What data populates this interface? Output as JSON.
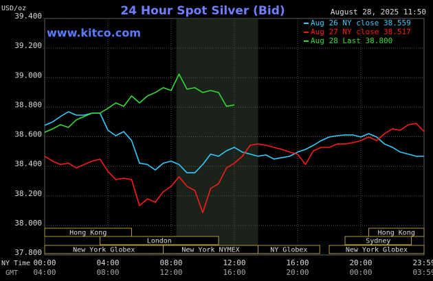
{
  "chart_data": {
    "type": "line",
    "title": "24 Hour Spot Silver (Bid)",
    "timestamp": "August 28, 2025 11:50",
    "watermark": "www.kitco.com",
    "y_label": "USD/oz",
    "x_label_rows": [
      "NY Time",
      "GMT"
    ],
    "x": [
      0,
      0.5,
      1,
      1.5,
      2,
      2.5,
      3,
      3.5,
      4,
      4.5,
      5,
      5.5,
      6,
      6.5,
      7,
      7.5,
      8,
      8.5,
      9,
      9.5,
      10,
      10.5,
      11,
      11.5,
      12,
      12.5,
      13,
      13.5,
      14,
      14.5,
      15,
      15.5,
      16,
      16.5,
      17,
      17.5,
      18,
      18.5,
      19,
      19.5,
      20,
      20.5,
      21,
      21.5,
      22,
      22.5,
      23,
      23.5,
      24
    ],
    "xlim": [
      0,
      24
    ],
    "xticks": [
      {
        "value": 0,
        "label": "00:00"
      },
      {
        "value": 4,
        "label": "04:00"
      },
      {
        "value": 8,
        "label": "08:00"
      },
      {
        "value": 12,
        "label": "12:00"
      },
      {
        "value": 16,
        "label": "16:00"
      },
      {
        "value": 20,
        "label": "20:00"
      },
      {
        "value": 24,
        "label": "23:59"
      }
    ],
    "gmt_tick_labels": [
      "04:00",
      "08:00",
      "12:00",
      "16:00",
      "20:00",
      "00:00",
      "03:59"
    ],
    "ylim": [
      37.8,
      39.4
    ],
    "yticks": [
      {
        "value": 37.8,
        "label": "37.800"
      },
      {
        "value": 38.0,
        "label": "38.000"
      },
      {
        "value": 38.2,
        "label": "38.200"
      },
      {
        "value": 38.4,
        "label": "38.400"
      },
      {
        "value": 38.6,
        "label": "38.600"
      },
      {
        "value": 38.8,
        "label": "38.800"
      },
      {
        "value": 39.0,
        "label": "39.000"
      },
      {
        "value": 39.2,
        "label": "39.200"
      },
      {
        "value": 39.4,
        "label": "39.400"
      }
    ],
    "grid": true,
    "shaded_hours": [
      8.33,
      13.5
    ],
    "series": [
      {
        "name": "Aug 26 NY close 38.559",
        "color": "#33ccff",
        "values": [
          38.677,
          38.7,
          38.737,
          38.769,
          38.746,
          38.746,
          38.76,
          38.76,
          38.644,
          38.607,
          38.635,
          38.574,
          38.421,
          38.412,
          38.375,
          38.421,
          38.435,
          38.412,
          38.356,
          38.356,
          38.412,
          38.482,
          38.468,
          38.505,
          38.528,
          38.496,
          38.482,
          38.468,
          38.477,
          38.449,
          38.458,
          38.468,
          38.496,
          38.514,
          38.542,
          38.574,
          38.598,
          38.607,
          38.612,
          38.612,
          38.598,
          38.621,
          38.598,
          38.551,
          38.528,
          38.496,
          38.482,
          38.468,
          38.468
        ]
      },
      {
        "name": "Aug 27 NY close 38.517",
        "color": "#ff1a1a",
        "values": [
          38.468,
          38.435,
          38.412,
          38.421,
          38.389,
          38.412,
          38.435,
          38.449,
          38.366,
          38.31,
          38.319,
          38.31,
          38.134,
          38.18,
          38.157,
          38.227,
          38.264,
          38.329,
          38.264,
          38.236,
          38.087,
          38.25,
          38.282,
          38.389,
          38.421,
          38.468,
          38.542,
          38.551,
          38.542,
          38.528,
          38.514,
          38.496,
          38.482,
          38.412,
          38.505,
          38.528,
          38.528,
          38.551,
          38.551,
          38.56,
          38.574,
          38.598,
          38.574,
          38.621,
          38.653,
          38.644,
          38.681,
          38.69,
          38.635
        ]
      },
      {
        "name": "Aug 28 Last 38.800",
        "color": "#33dd33",
        "values": [
          38.63,
          38.653,
          38.681,
          38.663,
          38.714,
          38.737,
          38.76,
          38.76,
          38.792,
          38.829,
          38.806,
          38.876,
          38.829,
          38.876,
          38.899,
          38.932,
          38.913,
          39.024,
          38.922,
          38.932,
          38.899,
          38.913,
          38.899,
          38.806,
          38.815,
          null,
          null,
          null,
          null,
          null,
          null,
          null,
          null,
          null,
          null,
          null,
          null,
          null,
          null,
          null,
          null,
          null,
          null,
          null,
          null,
          null,
          null,
          null,
          null
        ]
      }
    ],
    "sessions": [
      {
        "name": "Hong Kong",
        "start": 0,
        "end": 5.5,
        "row": 0
      },
      {
        "name": "Hong Kong",
        "start": 20.5,
        "end": 24,
        "row": 0
      },
      {
        "name": "London",
        "start": 3.5,
        "end": 11,
        "row": 1
      },
      {
        "name": "Sydney",
        "start": 19,
        "end": 23.2,
        "row": 1
      },
      {
        "name": "New York Globex",
        "start": 0,
        "end": 7.5,
        "row": 2
      },
      {
        "name": "New York NYMEX",
        "start": 7.5,
        "end": 13.5,
        "row": 2
      },
      {
        "name": "NY Globex",
        "start": 13.5,
        "end": 17.4,
        "row": 2
      },
      {
        "name": "New York Globex",
        "start": 18,
        "end": 24,
        "row": 2
      }
    ]
  }
}
